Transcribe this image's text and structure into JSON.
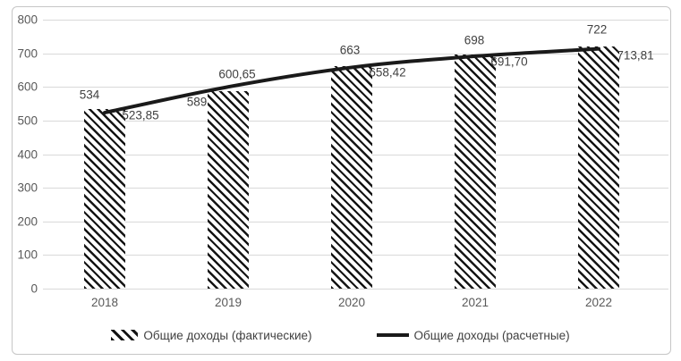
{
  "chart_data": {
    "type": "bar",
    "title": "",
    "categories": [
      "2018",
      "2019",
      "2020",
      "2021",
      "2022"
    ],
    "series": [
      {
        "name": "Общие доходы (фактические)",
        "type": "bar",
        "pattern": "diagonal-hatch",
        "color": "#141414",
        "values": [
          534,
          589,
          663,
          698,
          722
        ],
        "labels": [
          "534",
          "589",
          "663",
          "698",
          "722"
        ]
      },
      {
        "name": "Общие доходы (расчетные)",
        "type": "line",
        "color": "#1a1a1a",
        "values": [
          523.85,
          600.65,
          658.42,
          691.7,
          713.81
        ],
        "labels": [
          "523,85",
          "600,65",
          "658,42",
          "691,70",
          "713,81"
        ]
      }
    ],
    "y_axis": {
      "min": 0,
      "max": 800,
      "step": 100,
      "ticks": [
        "0",
        "100",
        "200",
        "300",
        "400",
        "500",
        "600",
        "700",
        "800"
      ]
    },
    "x_axis": {
      "ticks": [
        "2018",
        "2019",
        "2020",
        "2021",
        "2022"
      ]
    },
    "grid": true,
    "legend": {
      "position": "bottom",
      "entries": [
        "Общие доходы (фактические)",
        "Общие доходы (расчетные)"
      ]
    }
  },
  "colors": {
    "background": "#ffffff",
    "frame_border": "#c6c6c6",
    "gridline": "#d9d9d9",
    "axis_text": "#595959",
    "data_label_text": "#404040",
    "line": "#1a1a1a"
  }
}
